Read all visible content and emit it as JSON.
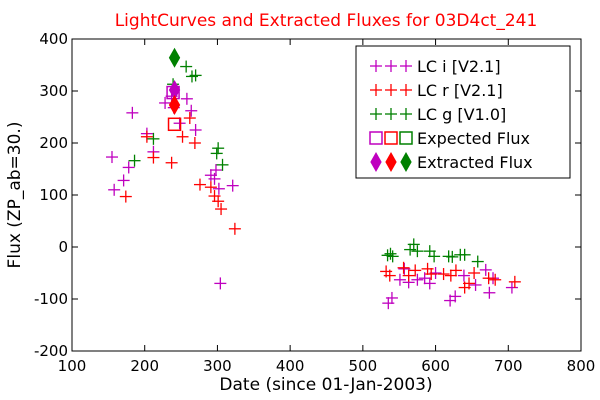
{
  "chart_data": {
    "type": "scatter",
    "title": "LightCurves and Extracted Fluxes for 03D4ct_241",
    "xlabel": "Date (since 01-Jan-2003)",
    "ylabel": "Flux (ZP_ab=30.)",
    "xlim": [
      100,
      800
    ],
    "ylim": [
      -200,
      400
    ],
    "xticks": [
      100,
      200,
      300,
      400,
      500,
      600,
      700,
      800
    ],
    "yticks": [
      -200,
      -100,
      0,
      100,
      200,
      300,
      400
    ],
    "grid": false,
    "legend_position": "top-right",
    "series": [
      {
        "name": "LC i [V2.1]",
        "marker": "plus",
        "color": "#bf00bf",
        "points": [
          [
            155,
            173
          ],
          [
            158,
            110
          ],
          [
            171,
            128
          ],
          [
            178,
            153
          ],
          [
            183,
            258
          ],
          [
            203,
            218
          ],
          [
            212,
            183
          ],
          [
            228,
            277
          ],
          [
            237,
            290
          ],
          [
            240,
            268
          ],
          [
            248,
            238
          ],
          [
            258,
            285
          ],
          [
            264,
            262
          ],
          [
            270,
            225
          ],
          [
            291,
            138
          ],
          [
            296,
            131
          ],
          [
            298,
            148
          ],
          [
            302,
            112
          ],
          [
            304,
            -70
          ],
          [
            321,
            118
          ],
          [
            535,
            -108
          ],
          [
            540,
            -98
          ],
          [
            551,
            -63
          ],
          [
            557,
            -42
          ],
          [
            563,
            -68
          ],
          [
            575,
            -63
          ],
          [
            585,
            -60
          ],
          [
            592,
            -70
          ],
          [
            600,
            -50
          ],
          [
            620,
            -103
          ],
          [
            627,
            -95
          ],
          [
            639,
            -55
          ],
          [
            655,
            -73
          ],
          [
            669,
            -44
          ],
          [
            674,
            -88
          ],
          [
            679,
            -60
          ],
          [
            705,
            -78
          ]
        ]
      },
      {
        "name": "LC r [V2.1]",
        "marker": "plus",
        "color": "#ff0000",
        "points": [
          [
            174,
            97
          ],
          [
            203,
            212
          ],
          [
            212,
            172
          ],
          [
            237,
            162
          ],
          [
            252,
            212
          ],
          [
            262,
            248
          ],
          [
            269,
            200
          ],
          [
            276,
            120
          ],
          [
            291,
            115
          ],
          [
            296,
            98
          ],
          [
            301,
            88
          ],
          [
            305,
            73
          ],
          [
            324,
            35
          ],
          [
            532,
            -47
          ],
          [
            537,
            -55
          ],
          [
            556,
            -40
          ],
          [
            563,
            -55
          ],
          [
            572,
            -45
          ],
          [
            589,
            -42
          ],
          [
            594,
            -52
          ],
          [
            611,
            -52
          ],
          [
            621,
            -55
          ],
          [
            628,
            -45
          ],
          [
            640,
            -78
          ],
          [
            646,
            -70
          ],
          [
            653,
            -50
          ],
          [
            673,
            -60
          ],
          [
            682,
            -63
          ],
          [
            709,
            -67
          ]
        ]
      },
      {
        "name": "LC g [V1.0]",
        "marker": "plus",
        "color": "#008000",
        "points": [
          [
            186,
            166
          ],
          [
            212,
            208
          ],
          [
            239,
            313
          ],
          [
            257,
            347
          ],
          [
            265,
            328
          ],
          [
            270,
            330
          ],
          [
            299,
            180
          ],
          [
            301,
            190
          ],
          [
            307,
            158
          ],
          [
            534,
            -16
          ],
          [
            538,
            -13
          ],
          [
            541,
            -18
          ],
          [
            565,
            -5
          ],
          [
            570,
            5
          ],
          [
            575,
            -8
          ],
          [
            592,
            -8
          ],
          [
            598,
            -18
          ],
          [
            618,
            -18
          ],
          [
            623,
            -19
          ],
          [
            634,
            -15
          ],
          [
            640,
            -15
          ],
          [
            658,
            -28
          ]
        ]
      },
      {
        "name": "Expected Flux",
        "marker": "square",
        "color": "#bf00bf",
        "points": [
          [
            239,
            297
          ]
        ]
      },
      {
        "name": "Expected Flux",
        "marker": "square",
        "color": "#ff0000",
        "points": [
          [
            241,
            236
          ]
        ]
      },
      {
        "name": "Extracted Flux",
        "marker": "diamond",
        "color": "#008000",
        "points": [
          [
            241,
            364
          ]
        ]
      },
      {
        "name": "Extracted Flux",
        "marker": "diamond",
        "color": "#bf00bf",
        "points": [
          [
            241,
            302
          ]
        ]
      },
      {
        "name": "Extracted Flux",
        "marker": "diamond",
        "color": "#ff0000",
        "points": [
          [
            241,
            273
          ]
        ]
      }
    ],
    "legend": [
      {
        "label": "LC i [V2.1]",
        "marker": "plus",
        "color": "#bf00bf"
      },
      {
        "label": "LC r [V2.1]",
        "marker": "plus",
        "color": "#ff0000"
      },
      {
        "label": "LC g [V1.0]",
        "marker": "plus",
        "color": "#008000"
      },
      {
        "label": "Expected Flux",
        "marker": "square",
        "color": "#bf00bf"
      },
      {
        "label": "Extracted Flux",
        "marker": "diamond",
        "color": "#bf00bf"
      }
    ]
  }
}
